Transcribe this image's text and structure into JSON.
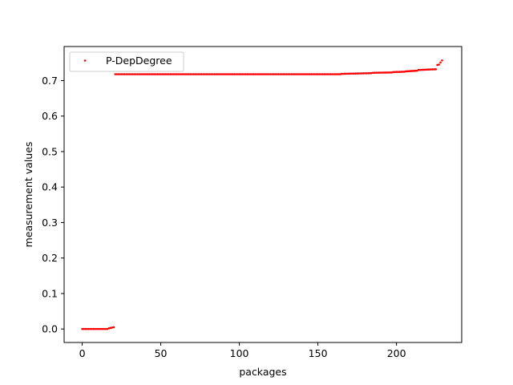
{
  "chart_data": {
    "type": "scatter",
    "title": "",
    "xlabel": "packages",
    "ylabel": "measurement values",
    "xlim": [
      -11.5,
      241.5
    ],
    "ylim": [
      -0.038,
      0.796
    ],
    "xticks": [
      0,
      50,
      100,
      150,
      200
    ],
    "yticks": [
      0.0,
      0.1,
      0.2,
      0.3,
      0.4,
      0.5,
      0.6,
      0.7
    ],
    "xtick_labels": [
      "0",
      "50",
      "100",
      "150",
      "200"
    ],
    "ytick_labels": [
      "0.0",
      "0.1",
      "0.2",
      "0.3",
      "0.4",
      "0.5",
      "0.6",
      "0.7"
    ],
    "grid": false,
    "legend_position": "top-left",
    "series": [
      {
        "name": "P-DepDegree",
        "color": "#ff0000",
        "marker": "point",
        "segments": [
          {
            "x_start": 0,
            "x_end": 16,
            "y_start": 0.0,
            "y_end": 0.0
          },
          {
            "x_start": 17,
            "x_end": 20,
            "y_start": 0.002,
            "y_end": 0.005
          },
          {
            "x_start": 21,
            "x_end": 164,
            "y_start": 0.718,
            "y_end": 0.718
          },
          {
            "x_start": 165,
            "x_end": 184,
            "y_start": 0.719,
            "y_end": 0.721
          },
          {
            "x_start": 185,
            "x_end": 197,
            "y_start": 0.722,
            "y_end": 0.723
          },
          {
            "x_start": 198,
            "x_end": 205,
            "y_start": 0.724,
            "y_end": 0.725
          },
          {
            "x_start": 206,
            "x_end": 213,
            "y_start": 0.726,
            "y_end": 0.728
          },
          {
            "x_start": 214,
            "x_end": 225,
            "y_start": 0.73,
            "y_end": 0.732
          }
        ],
        "extra_points": [
          {
            "x": 226,
            "y": 0.744
          },
          {
            "x": 227,
            "y": 0.745
          },
          {
            "x": 228,
            "y": 0.751
          },
          {
            "x": 229,
            "y": 0.757
          }
        ]
      }
    ]
  }
}
